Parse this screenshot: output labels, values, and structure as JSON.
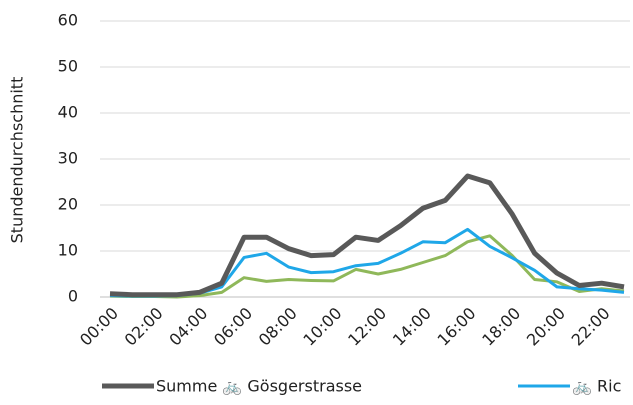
{
  "chart_data": {
    "type": "line",
    "y_label": "Stundendurchschnitt",
    "categories": [
      "00:00",
      null,
      "02:00",
      null,
      "04:00",
      null,
      "06:00",
      null,
      "08:00",
      null,
      "10:00",
      null,
      "12:00",
      null,
      "14:00",
      null,
      "16:00",
      null,
      "18:00",
      null,
      "20:00",
      null,
      "22:00",
      null
    ],
    "series": [
      {
        "name": "Summe 🚲 Gösgerstrasse",
        "color": "#595959",
        "values": [
          0.7,
          0.5,
          0.5,
          0.5,
          1,
          3,
          13,
          13,
          10.5,
          9,
          9.2,
          13,
          12.3,
          15.5,
          19.3,
          21,
          26.3,
          24.8,
          18,
          9.5,
          5.2,
          2.5,
          3,
          2.2
        ]
      },
      {
        "name": "🚲 Ric",
        "color": "#1fa7e8",
        "values": [
          0.3,
          0.2,
          0.2,
          0.3,
          0.8,
          2.2,
          8.6,
          9.5,
          6.5,
          5.3,
          5.5,
          6.8,
          7.3,
          9.5,
          12,
          11.8,
          14.7,
          11,
          8.5,
          5.8,
          2.2,
          1.8,
          1.5,
          1
        ]
      },
      {
        "color": "#8fb85a",
        "values": [
          0.2,
          0.1,
          0.1,
          0,
          0.3,
          1,
          4.2,
          3.4,
          3.8,
          3.6,
          3.5,
          6,
          5,
          6,
          7.5,
          9,
          12,
          13.3,
          9,
          3.8,
          3.3,
          1.2,
          1.8,
          1.3
        ]
      }
    ],
    "ylim": [
      0,
      60
    ],
    "yticks": [
      0,
      10,
      20,
      30,
      40,
      50,
      60
    ],
    "grid": true
  }
}
